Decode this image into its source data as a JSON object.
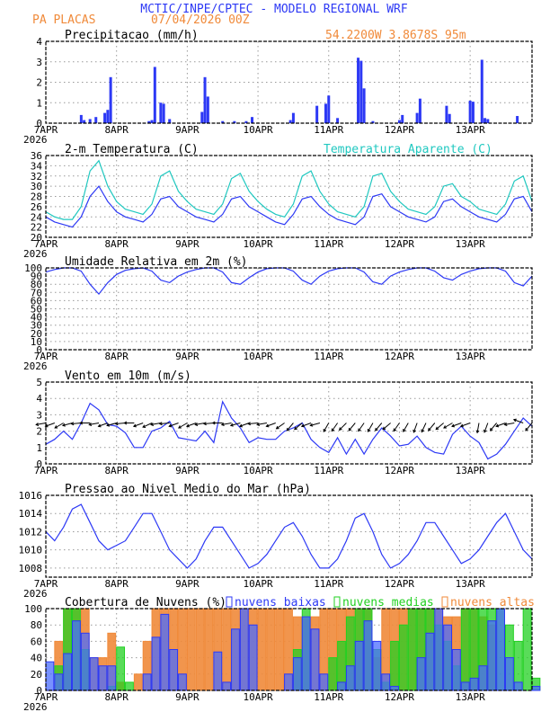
{
  "header": {
    "title": "MCTIC/INPE/CPTEC - MODELO REGIONAL WRF",
    "location": "PA PLACAS",
    "run": "07/04/2026 00Z",
    "coords": "54.2200W 3.8678S 95m"
  },
  "colors": {
    "title": "#2d39f5",
    "orange": "#f08a3a",
    "cyan": "#20c8c0",
    "blue": "#2d39f5",
    "green": "#22d022",
    "grid": "#999999"
  },
  "x_axis": {
    "hours_range": [
      0,
      165
    ],
    "step_hours": 3,
    "day_labels": [
      "7APR",
      "8APR",
      "9APR",
      "10APR",
      "11APR",
      "12APR",
      "13APR"
    ],
    "year_label": "2026"
  },
  "chart_data": [
    {
      "id": "precip",
      "type": "bar",
      "title": "Precipitacao (mm/h)",
      "ylim": [
        0,
        4
      ],
      "yticks": [
        0,
        1,
        2,
        3,
        4
      ],
      "grid": true,
      "points_hour_value": [
        [
          12,
          0.4
        ],
        [
          13,
          0.15
        ],
        [
          15,
          0.2
        ],
        [
          17,
          0.3
        ],
        [
          20,
          0.5
        ],
        [
          21,
          0.65
        ],
        [
          22,
          2.25
        ],
        [
          35,
          0.1
        ],
        [
          36,
          0.15
        ],
        [
          37,
          2.75
        ],
        [
          39,
          1.0
        ],
        [
          40,
          0.95
        ],
        [
          42,
          0.2
        ],
        [
          53,
          0.55
        ],
        [
          54,
          2.25
        ],
        [
          55,
          1.3
        ],
        [
          60,
          0.1
        ],
        [
          64,
          0.1
        ],
        [
          68,
          0.1
        ],
        [
          70,
          0.3
        ],
        [
          83,
          0.15
        ],
        [
          84,
          0.5
        ],
        [
          92,
          0.85
        ],
        [
          95,
          0.95
        ],
        [
          96,
          1.35
        ],
        [
          99,
          0.25
        ],
        [
          106,
          3.2
        ],
        [
          107,
          3.05
        ],
        [
          108,
          1.7
        ],
        [
          111,
          0.1
        ],
        [
          120,
          0.15
        ],
        [
          121,
          0.4
        ],
        [
          126,
          0.5
        ],
        [
          127,
          1.2
        ],
        [
          136,
          0.85
        ],
        [
          137,
          0.45
        ],
        [
          144,
          1.1
        ],
        [
          145,
          1.05
        ],
        [
          148,
          3.1
        ],
        [
          149,
          0.25
        ],
        [
          150,
          0.2
        ],
        [
          160,
          0.35
        ]
      ]
    },
    {
      "id": "temperature",
      "type": "line",
      "title": "2-m Temperatura (C)",
      "ylim": [
        20,
        36
      ],
      "yticks": [
        20,
        22,
        24,
        26,
        28,
        30,
        32,
        34,
        36
      ],
      "grid": true,
      "series": [
        {
          "name": "2-m Temperatura (C)",
          "color": "#2d39f5",
          "values": [
            24,
            23,
            22.5,
            22,
            24,
            28,
            30,
            27,
            25,
            24,
            23.5,
            23,
            24.5,
            27.5,
            28,
            26,
            25,
            24,
            23.5,
            23,
            24.5,
            27.5,
            28,
            26,
            25,
            24,
            23,
            22.5,
            24.5,
            27.5,
            28,
            26,
            24.5,
            23.5,
            23,
            22.5,
            24,
            28,
            28.5,
            26,
            25,
            24,
            23.5,
            23,
            24,
            27,
            27.5,
            26,
            25,
            24,
            23.5,
            23,
            24.5,
            27.5,
            28,
            25
          ]
        },
        {
          "name": "Temperatura Aparente (C)",
          "color": "#20c8c0",
          "values": [
            25,
            24,
            23.5,
            23.5,
            26,
            33,
            35,
            30,
            27,
            25.5,
            25,
            24.5,
            26.5,
            32,
            33,
            29,
            27,
            25.5,
            25,
            24.5,
            26.5,
            31.5,
            32.5,
            29,
            27,
            25.5,
            24.5,
            24,
            26.5,
            32,
            33,
            29,
            26.5,
            25,
            24.5,
            24,
            26,
            32,
            32.5,
            29,
            27,
            25.5,
            25,
            24.5,
            26,
            30,
            30.5,
            28,
            27,
            25.5,
            25,
            24.5,
            26.5,
            31,
            32,
            27
          ]
        }
      ]
    },
    {
      "id": "humidity",
      "type": "line",
      "title": "Umidade Relativa em 2m (%)",
      "ylim": [
        0,
        100
      ],
      "yticks": [
        0,
        10,
        20,
        30,
        40,
        50,
        60,
        70,
        80,
        90,
        100
      ],
      "grid": true,
      "series": [
        {
          "color": "#2d39f5",
          "values": [
            95,
            98,
            100,
            100,
            96,
            80,
            68,
            82,
            92,
            97,
            99,
            100,
            96,
            85,
            82,
            90,
            95,
            98,
            100,
            100,
            95,
            82,
            80,
            88,
            95,
            99,
            100,
            100,
            96,
            85,
            80,
            90,
            96,
            99,
            100,
            100,
            95,
            83,
            80,
            90,
            95,
            98,
            100,
            100,
            96,
            88,
            85,
            92,
            96,
            99,
            100,
            100,
            96,
            82,
            78,
            90
          ]
        }
      ]
    },
    {
      "id": "wind",
      "type": "line",
      "title": "Vento em 10m (m/s)",
      "ylim": [
        0,
        5
      ],
      "yticks": [
        0,
        1,
        2,
        3,
        4,
        5
      ],
      "grid": true,
      "series": [
        {
          "color": "#2d39f5",
          "values": [
            1.2,
            1.5,
            2.0,
            1.5,
            2.5,
            3.7,
            3.3,
            2.4,
            2.3,
            1.9,
            1.0,
            1.0,
            2.0,
            2.2,
            2.6,
            1.6,
            1.5,
            1.4,
            2.0,
            1.3,
            3.8,
            2.8,
            2.2,
            1.3,
            1.6,
            1.5,
            1.5,
            2.0,
            2.2,
            2.5,
            1.5,
            1.0,
            0.7,
            1.6,
            0.6,
            1.5,
            0.6,
            1.5,
            2.2,
            1.7,
            1.1,
            1.2,
            1.7,
            1.0,
            0.7,
            0.6,
            1.8,
            2.3,
            1.7,
            1.3,
            0.3,
            0.6,
            1.2,
            2.0,
            2.8,
            2.3
          ]
        }
      ],
      "vector_toward_deg": [
        190,
        200,
        210,
        195,
        185,
        180,
        190,
        200,
        195,
        185,
        180,
        200,
        205,
        190,
        185,
        200,
        210,
        200,
        190,
        185,
        180,
        190,
        195,
        200,
        185,
        190,
        200,
        215,
        230,
        220,
        200,
        195,
        240,
        235,
        225,
        230,
        235,
        240,
        230,
        220,
        235,
        240,
        250,
        245,
        230,
        220,
        210,
        200,
        200,
        260,
        250,
        230,
        200,
        190,
        160,
        230
      ]
    },
    {
      "id": "pressure",
      "type": "line",
      "title": "Pressao ao Nivel Medio do Mar (hPa)",
      "ylim": [
        1007,
        1016
      ],
      "yticks": [
        1008,
        1010,
        1012,
        1014,
        1016
      ],
      "grid": true,
      "series": [
        {
          "color": "#2d39f5",
          "values": [
            1012,
            1011,
            1012.5,
            1014.5,
            1015,
            1013,
            1011,
            1010,
            1010.5,
            1011,
            1012.5,
            1014,
            1014,
            1012,
            1010,
            1009,
            1008,
            1009,
            1011,
            1012.5,
            1012.5,
            1011,
            1009.5,
            1008,
            1008.5,
            1009.5,
            1011,
            1012.5,
            1013,
            1011.5,
            1009.5,
            1008,
            1008,
            1009,
            1011,
            1013.5,
            1014,
            1012,
            1009.5,
            1008,
            1008.5,
            1009.5,
            1011,
            1013,
            1013,
            1011.5,
            1010,
            1008.5,
            1009,
            1010,
            1011.5,
            1013,
            1014,
            1012,
            1010,
            1009
          ]
        }
      ]
    },
    {
      "id": "clouds",
      "type": "bar",
      "title": "Cobertura de Nuvens (%)",
      "ylim": [
        0,
        100
      ],
      "yticks": [
        0,
        20,
        40,
        60,
        80,
        100
      ],
      "grid": true,
      "legend": "top",
      "series": [
        {
          "name": "nuvens altas",
          "color": "#f08a3a",
          "values": [
            0,
            60,
            100,
            100,
            100,
            40,
            40,
            70,
            10,
            0,
            20,
            60,
            100,
            100,
            100,
            100,
            100,
            100,
            100,
            100,
            100,
            100,
            100,
            100,
            100,
            100,
            100,
            100,
            90,
            88,
            90,
            100,
            100,
            100,
            100,
            100,
            100,
            40,
            100,
            100,
            100,
            100,
            100,
            100,
            100,
            90,
            90,
            100,
            100,
            90,
            80,
            0,
            0,
            0,
            0,
            0
          ]
        },
        {
          "name": "nuvens medias",
          "color": "#22d022",
          "values": [
            0,
            30,
            100,
            100,
            50,
            0,
            0,
            5,
            53,
            10,
            0,
            0,
            0,
            0,
            0,
            0,
            0,
            0,
            0,
            0,
            0,
            0,
            0,
            0,
            0,
            0,
            0,
            0,
            50,
            100,
            0,
            0,
            40,
            60,
            90,
            100,
            100,
            50,
            10,
            60,
            80,
            100,
            100,
            100,
            80,
            60,
            30,
            100,
            100,
            100,
            100,
            100,
            80,
            60,
            100,
            15
          ]
        },
        {
          "name": "nuvens baixas",
          "color": "#2d39f5",
          "values": [
            35,
            20,
            45,
            85,
            70,
            40,
            30,
            30,
            0,
            0,
            0,
            20,
            65,
            93,
            50,
            20,
            0,
            0,
            0,
            47,
            10,
            75,
            100,
            80,
            0,
            0,
            0,
            20,
            40,
            90,
            75,
            20,
            0,
            10,
            30,
            60,
            85,
            60,
            20,
            5,
            0,
            0,
            40,
            70,
            100,
            80,
            50,
            10,
            15,
            30,
            85,
            100,
            40,
            10,
            0,
            5
          ]
        }
      ]
    }
  ]
}
